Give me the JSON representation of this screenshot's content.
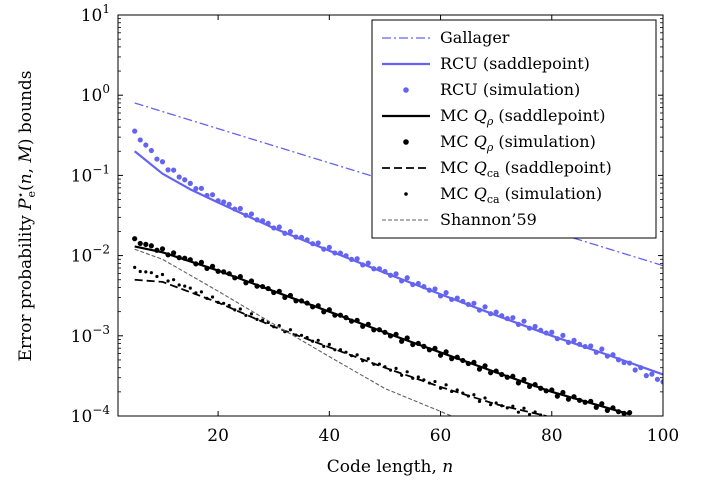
{
  "chart_data": {
    "type": "line",
    "xlabel": "Code length, n",
    "ylabel": "Error probability P*e(n, M) bounds",
    "xlim": [
      2,
      100
    ],
    "ylim": [
      0.0001,
      10
    ],
    "yscale": "log",
    "grid": false,
    "legend_position": "top-right",
    "x_ticks": [
      20,
      40,
      60,
      80,
      100
    ],
    "y_ticks": [
      {
        "value": 0.0001,
        "base": "10",
        "exp": "−4"
      },
      {
        "value": 0.001,
        "base": "10",
        "exp": "−3"
      },
      {
        "value": 0.01,
        "base": "10",
        "exp": "−2"
      },
      {
        "value": 0.1,
        "base": "10",
        "exp": "−1"
      },
      {
        "value": 1,
        "base": "10",
        "exp": "0"
      },
      {
        "value": 10,
        "base": "10",
        "exp": "1"
      }
    ],
    "series": [
      {
        "name": "Gallager",
        "style": "dashdot",
        "color": "#6464f0",
        "x": [
          5,
          100
        ],
        "y": [
          0.8,
          0.0075
        ]
      },
      {
        "name": "RCU (saddlepoint)",
        "style": "solid-thick",
        "color": "#6464f0",
        "x": [
          5,
          10,
          15,
          20,
          30,
          40,
          50,
          60,
          70,
          80,
          90,
          100
        ],
        "y": [
          0.2,
          0.105,
          0.067,
          0.046,
          0.022,
          0.0115,
          0.0061,
          0.0033,
          0.0018,
          0.001,
          0.00058,
          0.00033
        ]
      },
      {
        "name": "RCU (simulation)",
        "style": "dots-large",
        "color": "#6464f0",
        "x": [
          5,
          10,
          15,
          20,
          30,
          40,
          50,
          60,
          70,
          80,
          90,
          100
        ],
        "y": [
          0.34,
          0.14,
          0.078,
          0.05,
          0.023,
          0.012,
          0.0063,
          0.0034,
          0.0019,
          0.00105,
          0.0006,
          0.00027
        ]
      },
      {
        "name": "MC Qρ (saddlepoint)",
        "style": "solid-thick",
        "color": "#000000",
        "x": [
          5,
          10,
          20,
          30,
          40,
          50,
          60,
          70,
          80,
          94
        ],
        "y": [
          0.013,
          0.011,
          0.0065,
          0.0036,
          0.002,
          0.0011,
          0.00062,
          0.00035,
          0.0002,
          0.000105
        ]
      },
      {
        "name": "MC Qρ (simulation)",
        "style": "dots-large",
        "color": "#000000",
        "x": [
          5,
          10,
          20,
          30,
          40,
          50,
          60,
          70,
          80,
          94
        ],
        "y": [
          0.0155,
          0.0115,
          0.0066,
          0.0036,
          0.002,
          0.0011,
          0.00062,
          0.00035,
          0.0002,
          0.000105
        ]
      },
      {
        "name": "MC Qca (saddlepoint)",
        "style": "dashed-thick",
        "color": "#000000",
        "x": [
          5,
          10,
          20,
          30,
          40,
          50,
          60,
          70,
          79
        ],
        "y": [
          0.005,
          0.0047,
          0.0026,
          0.0013,
          0.00072,
          0.0004,
          0.00023,
          0.00014,
          0.0001
        ]
      },
      {
        "name": "MC Qca (simulation)",
        "style": "dots-small",
        "color": "#000000",
        "x": [
          5,
          10,
          20,
          30,
          40,
          50,
          60,
          70,
          79
        ],
        "y": [
          0.0068,
          0.0055,
          0.0027,
          0.00135,
          0.00074,
          0.00041,
          0.00024,
          0.00014,
          0.0001
        ]
      },
      {
        "name": "Shannon’59",
        "style": "dashed-thin",
        "color": "#606060",
        "x": [
          5,
          10,
          20,
          30,
          40,
          50,
          62
        ],
        "y": [
          0.012,
          0.009,
          0.0036,
          0.0014,
          0.00055,
          0.00022,
          0.0001
        ]
      }
    ]
  }
}
